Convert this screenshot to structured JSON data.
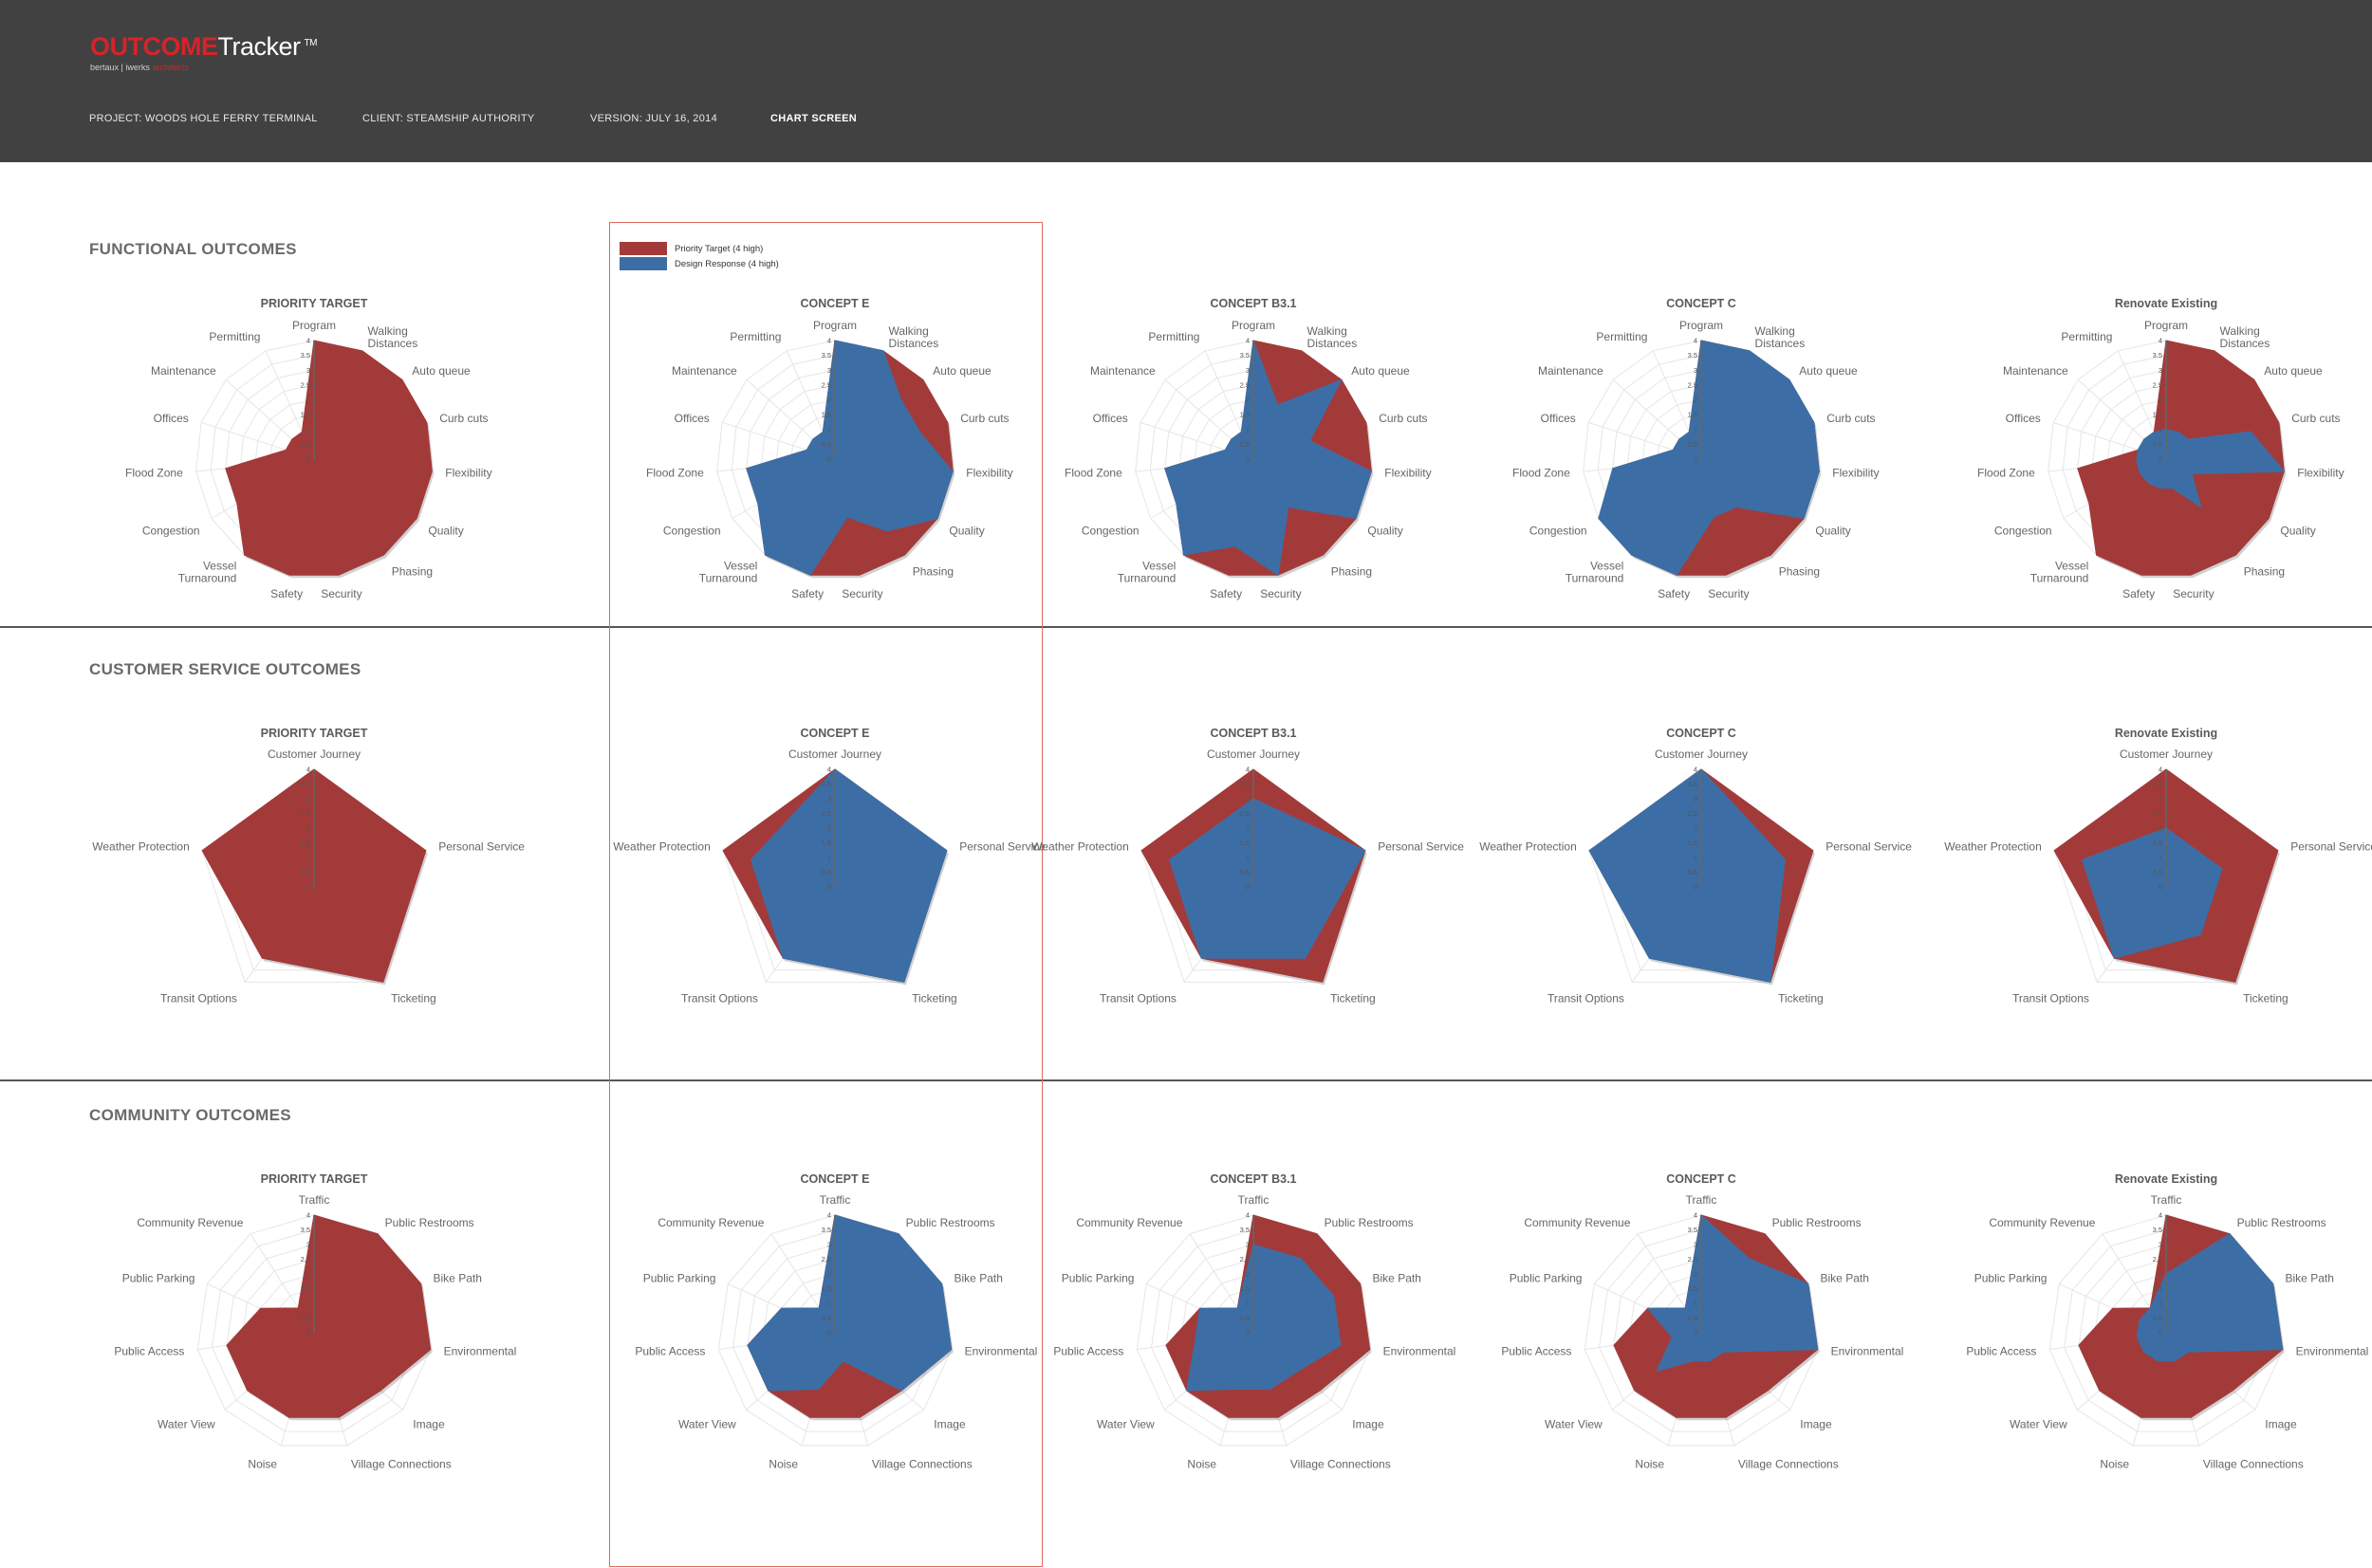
{
  "header": {
    "logo_outcome": "OUTCOME",
    "logo_tracker": "Tracker",
    "logo_tm": "TM",
    "logo_sub_a": "bertaux",
    "logo_sub_b": "iwerks",
    "logo_sub_c": "architects",
    "project": "PROJECT: WOODS HOLE FERRY TERMINAL",
    "client": "CLIENT: STEAMSHIP AUTHORITY",
    "version": "VERSION: JULY 16, 2014",
    "screen": "CHART SCREEN"
  },
  "legend": [
    {
      "label": "Priority Target (4 high)",
      "color": "#a33a3a"
    },
    {
      "label": "Design Response (4 high)",
      "color": "#3c6ea5"
    }
  ],
  "colors": {
    "target": "#a33a3a",
    "response": "#3c6ea5",
    "grid": "#e6e6e6",
    "axis": "#666666"
  },
  "ticks": [
    "0",
    "0.5",
    "1",
    "1.5",
    "2",
    "2.5",
    "3",
    "3.5",
    "4"
  ],
  "column_titles": [
    "PRIORITY TARGET",
    "CONCEPT E",
    "CONCEPT B3.1",
    "CONCEPT C",
    "Renovate Existing"
  ],
  "sections": [
    {
      "title": "FUNCTIONAL OUTCOMES",
      "chart_data": {
        "type": "radar",
        "axes": [
          "Program",
          "Walking Distances",
          "Auto queue",
          "Curb cuts",
          "Flexibility",
          "Quality",
          "Phasing",
          "Security",
          "Safety",
          "Vessel Turnaround",
          "Congestion",
          "Flood Zone",
          "Offices",
          "Maintenance",
          "Permitting"
        ],
        "ylim": [
          0,
          4
        ],
        "target": [
          4,
          4,
          4,
          4,
          4,
          4,
          4,
          4,
          4,
          4,
          3,
          3,
          1,
          1,
          1
        ],
        "responses": [
          [
            4,
            4,
            3,
            3,
            4,
            4,
            3,
            2,
            4,
            4,
            3,
            3,
            1,
            1,
            1
          ],
          [
            4,
            2,
            4,
            2,
            4,
            4,
            2,
            4,
            3,
            4,
            3,
            3,
            1,
            1,
            1
          ],
          [
            4,
            4,
            4,
            4,
            4,
            4,
            2,
            2,
            4,
            4,
            4,
            3,
            1,
            1,
            1
          ],
          [
            1,
            1,
            1,
            3,
            4,
            1,
            2,
            1,
            1,
            1,
            1,
            1,
            1,
            1,
            1
          ]
        ]
      }
    },
    {
      "title": "CUSTOMER SERVICE OUTCOMES",
      "chart_data": {
        "type": "radar",
        "axes": [
          "Customer Journey",
          "Personal Service",
          "Ticketing",
          "Transit Options",
          "Weather Protection"
        ],
        "ylim": [
          0,
          4
        ],
        "target": [
          4,
          4,
          4,
          3,
          4
        ],
        "responses": [
          [
            4,
            4,
            4,
            3,
            3
          ],
          [
            3,
            4,
            3,
            3,
            3
          ],
          [
            4,
            3,
            4,
            3,
            4
          ],
          [
            2,
            2,
            2,
            3,
            3
          ]
        ]
      }
    },
    {
      "title": "COMMUNITY OUTCOMES",
      "chart_data": {
        "type": "radar",
        "axes": [
          "Traffic",
          "Public Restrooms",
          "Bike Path",
          "Environmental",
          "Image",
          "Village Connections",
          "Noise",
          "Water View",
          "Public Access",
          "Public Parking",
          "Community Revenue"
        ],
        "ylim": [
          0,
          4
        ],
        "target": [
          4,
          4,
          4,
          4,
          3,
          3,
          3,
          3,
          3,
          2,
          1
        ],
        "responses": [
          [
            4,
            4,
            4,
            4,
            3,
            1,
            2,
            3,
            3,
            2,
            1
          ],
          [
            3,
            3,
            3,
            3,
            2,
            2,
            2,
            3,
            2,
            2,
            1
          ],
          [
            4,
            3,
            4,
            4,
            1,
            1,
            1,
            2,
            1,
            2,
            1
          ],
          [
            2,
            4,
            4,
            4,
            1,
            1,
            1,
            1,
            1,
            1,
            1
          ]
        ]
      }
    }
  ]
}
